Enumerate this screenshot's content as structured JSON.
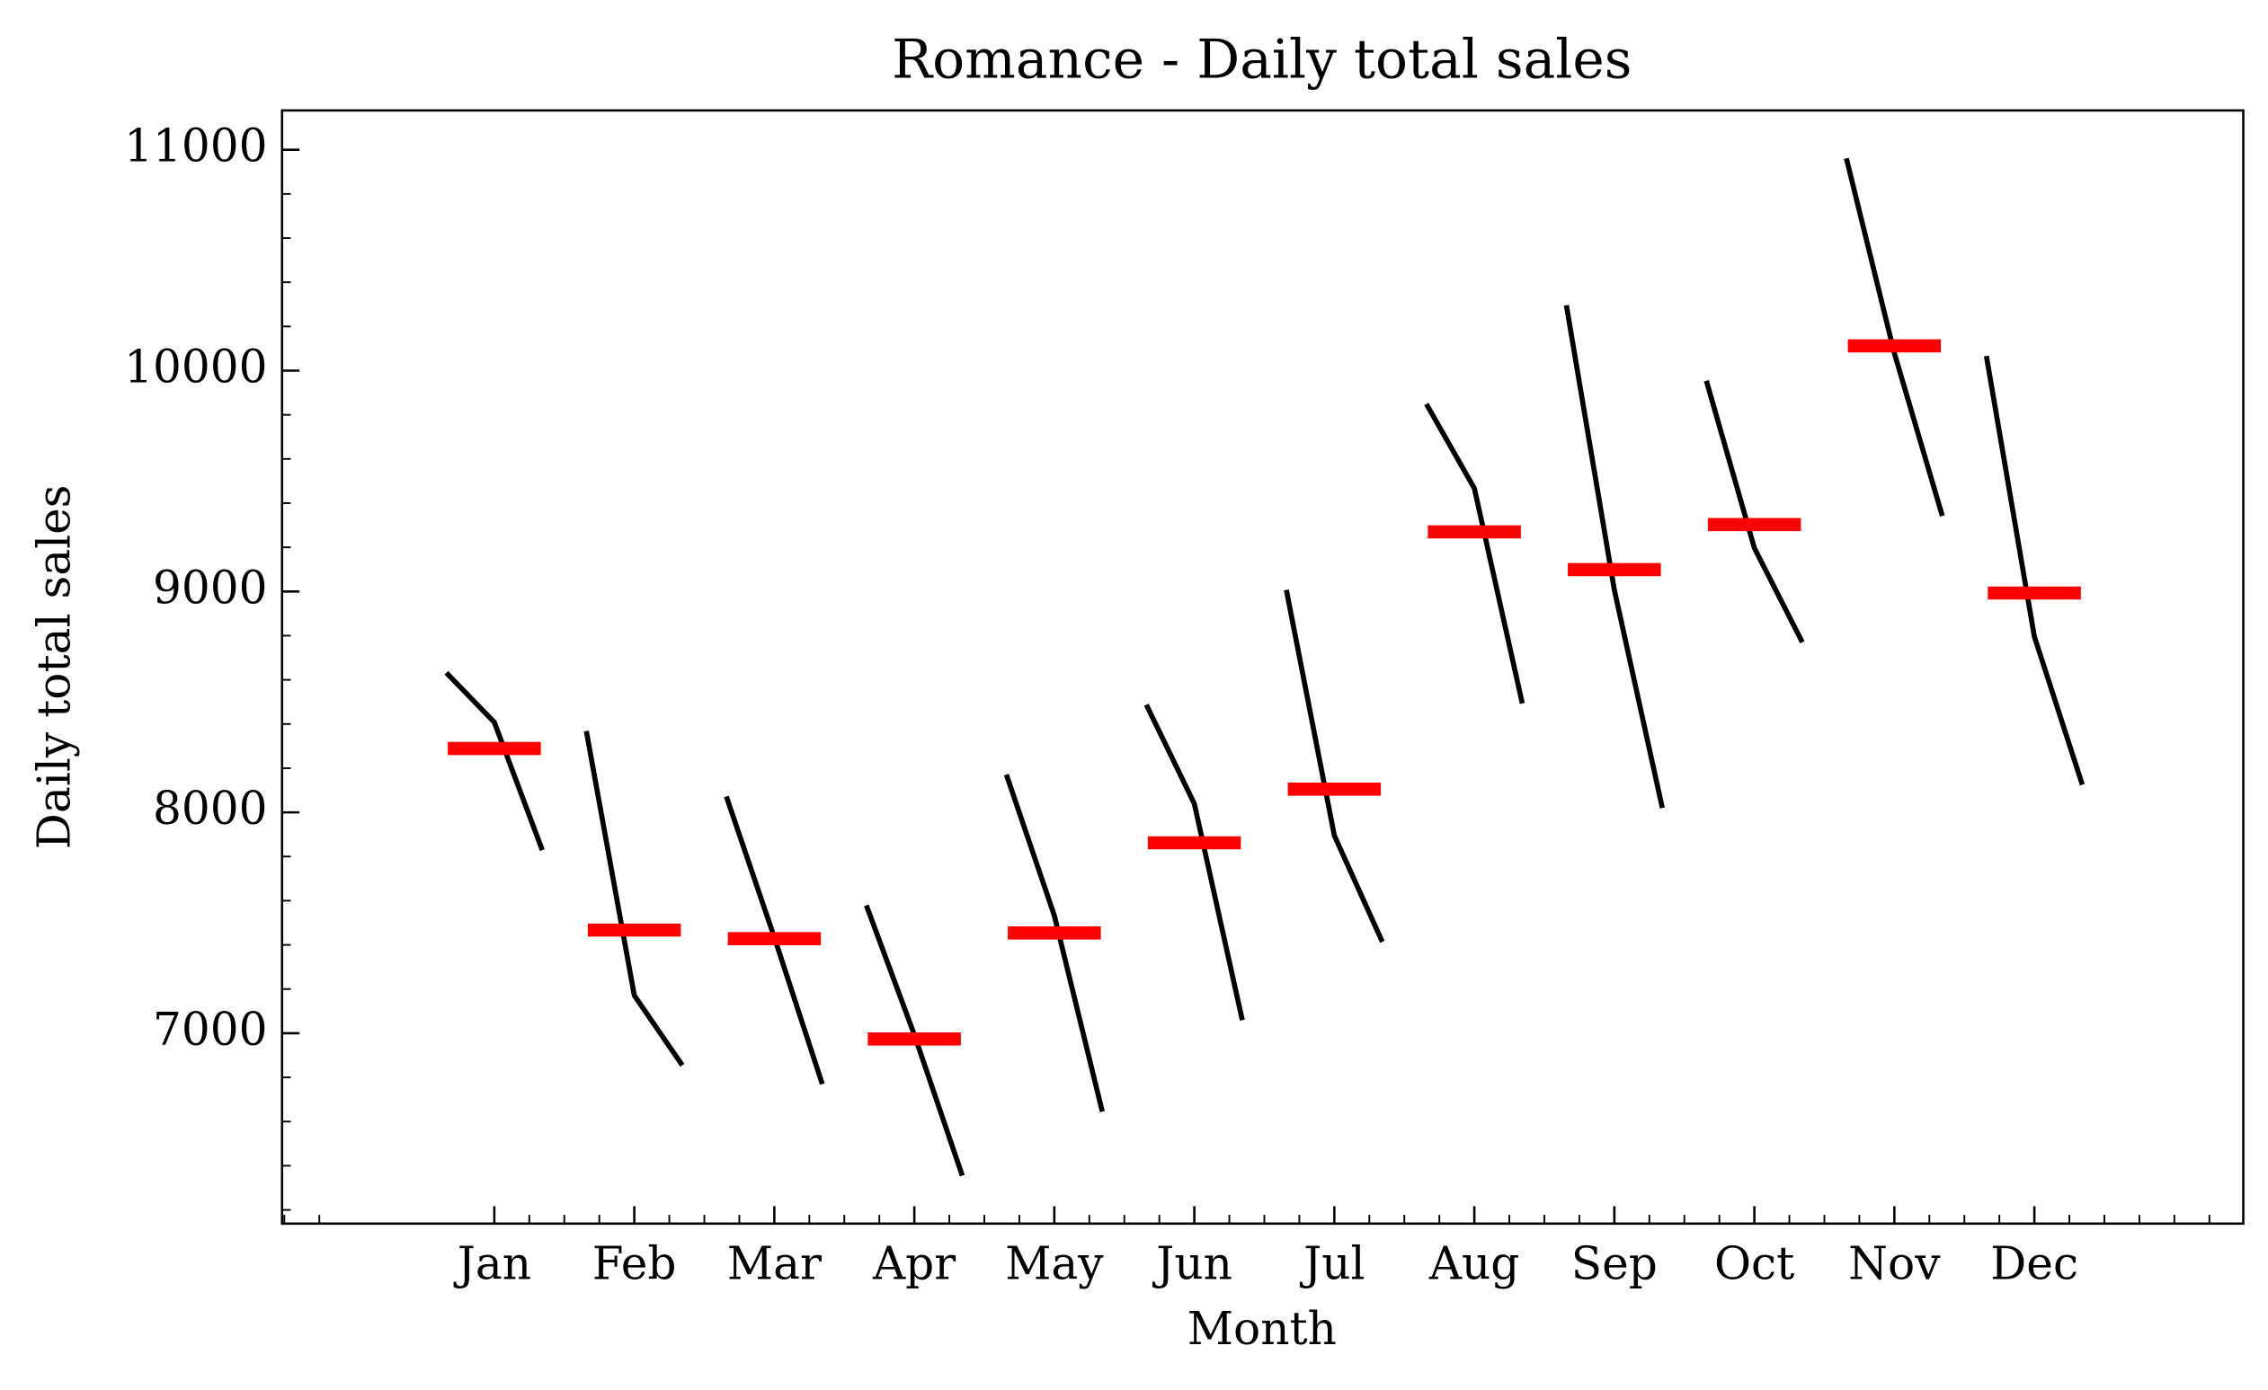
{
  "chart_data": {
    "type": "monthplot",
    "title": "Romance - Daily total sales",
    "xlabel": "Month",
    "ylabel": "Daily total sales",
    "categories": [
      "Jan",
      "Feb",
      "Mar",
      "Apr",
      "May",
      "Jun",
      "Jul",
      "Aug",
      "Sep",
      "Oct",
      "Nov",
      "Dec"
    ],
    "values": [
      [
        8632,
        8408,
        7829
      ],
      [
        8368,
        7171,
        6855
      ],
      [
        8072,
        7434,
        6770
      ],
      [
        7579,
        6993,
        6355
      ],
      [
        8171,
        7533,
        6645
      ],
      [
        8487,
        8039,
        7059
      ],
      [
        9007,
        7895,
        7414
      ],
      [
        9849,
        9467,
        8493
      ],
      [
        10296,
        9007,
        8020
      ],
      [
        9954,
        9197,
        8770
      ],
      [
        10961,
        10079,
        9342
      ],
      [
        10066,
        8796,
        8125
      ]
    ],
    "means": [
      8289,
      7467,
      7428,
      6974,
      7454,
      7862,
      8105,
      9270,
      9099,
      9303,
      10112,
      8993
    ],
    "color": "#000000",
    "mean_color": "#ff0000",
    "ylim": [
      6138,
      11178
    ],
    "yticks": [
      7000,
      8000,
      9000,
      10000,
      11000
    ]
  }
}
